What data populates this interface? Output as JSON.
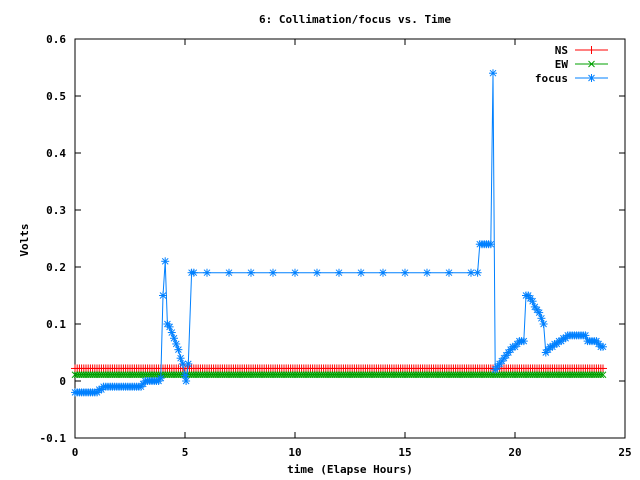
{
  "chart_data": {
    "type": "line",
    "title": "6: Collimation/focus vs. Time",
    "xlabel": "time (Elapse Hours)",
    "ylabel": "Volts",
    "xlim": [
      0,
      25
    ],
    "ylim": [
      -0.1,
      0.6
    ],
    "x_ticks": [
      "0",
      "5",
      "10",
      "15",
      "20",
      "25"
    ],
    "y_ticks": [
      "-0.1",
      "0",
      "0.1",
      "0.2",
      "0.3",
      "0.4",
      "0.5",
      "0.6"
    ],
    "legend_position": "top-right",
    "series": [
      {
        "name": "NS",
        "color": "#ff0000",
        "marker": "plus",
        "constant": {
          "from": 0,
          "to": 24,
          "step": 0.1,
          "value": 0.022
        }
      },
      {
        "name": "EW",
        "color": "#00a000",
        "marker": "cross",
        "constant": {
          "from": 0,
          "to": 24,
          "step": 0.1,
          "value": 0.011
        }
      },
      {
        "name": "focus",
        "color": "#0080ff",
        "marker": "star",
        "points": [
          [
            0.0,
            -0.02
          ],
          [
            0.1,
            -0.02
          ],
          [
            0.2,
            -0.02
          ],
          [
            0.3,
            -0.02
          ],
          [
            0.4,
            -0.02
          ],
          [
            0.5,
            -0.02
          ],
          [
            0.6,
            -0.02
          ],
          [
            0.7,
            -0.02
          ],
          [
            0.8,
            -0.02
          ],
          [
            0.9,
            -0.02
          ],
          [
            1.0,
            -0.02
          ],
          [
            1.1,
            -0.015
          ],
          [
            1.2,
            -0.015
          ],
          [
            1.3,
            -0.01
          ],
          [
            1.4,
            -0.01
          ],
          [
            1.5,
            -0.01
          ],
          [
            1.6,
            -0.01
          ],
          [
            1.7,
            -0.01
          ],
          [
            1.8,
            -0.01
          ],
          [
            1.9,
            -0.01
          ],
          [
            2.0,
            -0.01
          ],
          [
            2.1,
            -0.01
          ],
          [
            2.2,
            -0.01
          ],
          [
            2.3,
            -0.01
          ],
          [
            2.4,
            -0.01
          ],
          [
            2.5,
            -0.01
          ],
          [
            2.6,
            -0.01
          ],
          [
            2.7,
            -0.01
          ],
          [
            2.8,
            -0.01
          ],
          [
            2.9,
            -0.01
          ],
          [
            3.0,
            -0.01
          ],
          [
            3.1,
            -0.005
          ],
          [
            3.2,
            0.0
          ],
          [
            3.3,
            0.0
          ],
          [
            3.4,
            0.0
          ],
          [
            3.5,
            0.0
          ],
          [
            3.6,
            0.0
          ],
          [
            3.7,
            0.0
          ],
          [
            3.8,
            0.0
          ],
          [
            3.9,
            0.005
          ],
          [
            4.0,
            0.15
          ],
          [
            4.1,
            0.21
          ],
          [
            4.2,
            0.1
          ],
          [
            4.3,
            0.095
          ],
          [
            4.4,
            0.085
          ],
          [
            4.5,
            0.075
          ],
          [
            4.6,
            0.065
          ],
          [
            4.7,
            0.055
          ],
          [
            4.8,
            0.04
          ],
          [
            4.9,
            0.03
          ],
          [
            5.0,
            0.01
          ],
          [
            5.05,
            0.0
          ],
          [
            5.15,
            0.03
          ],
          [
            5.3,
            0.19
          ],
          [
            5.4,
            0.19
          ],
          [
            6.0,
            0.19
          ],
          [
            7.0,
            0.19
          ],
          [
            8.0,
            0.19
          ],
          [
            9.0,
            0.19
          ],
          [
            10.0,
            0.19
          ],
          [
            11.0,
            0.19
          ],
          [
            12.0,
            0.19
          ],
          [
            13.0,
            0.19
          ],
          [
            14.0,
            0.19
          ],
          [
            15.0,
            0.19
          ],
          [
            16.0,
            0.19
          ],
          [
            17.0,
            0.19
          ],
          [
            18.0,
            0.19
          ],
          [
            18.3,
            0.19
          ],
          [
            18.4,
            0.24
          ],
          [
            18.5,
            0.24
          ],
          [
            18.6,
            0.24
          ],
          [
            18.7,
            0.24
          ],
          [
            18.8,
            0.24
          ],
          [
            18.9,
            0.24
          ],
          [
            19.0,
            0.54
          ],
          [
            19.1,
            0.02
          ],
          [
            19.2,
            0.025
          ],
          [
            19.3,
            0.03
          ],
          [
            19.4,
            0.035
          ],
          [
            19.5,
            0.04
          ],
          [
            19.6,
            0.045
          ],
          [
            19.7,
            0.05
          ],
          [
            19.8,
            0.055
          ],
          [
            19.9,
            0.06
          ],
          [
            20.0,
            0.06
          ],
          [
            20.1,
            0.065
          ],
          [
            20.2,
            0.07
          ],
          [
            20.3,
            0.07
          ],
          [
            20.4,
            0.07
          ],
          [
            20.5,
            0.15
          ],
          [
            20.6,
            0.15
          ],
          [
            20.7,
            0.145
          ],
          [
            20.8,
            0.14
          ],
          [
            20.9,
            0.13
          ],
          [
            21.0,
            0.125
          ],
          [
            21.1,
            0.12
          ],
          [
            21.2,
            0.11
          ],
          [
            21.3,
            0.1
          ],
          [
            21.4,
            0.05
          ],
          [
            21.5,
            0.055
          ],
          [
            21.6,
            0.06
          ],
          [
            21.7,
            0.06
          ],
          [
            21.8,
            0.065
          ],
          [
            21.9,
            0.065
          ],
          [
            22.0,
            0.07
          ],
          [
            22.1,
            0.07
          ],
          [
            22.2,
            0.075
          ],
          [
            22.3,
            0.075
          ],
          [
            22.4,
            0.08
          ],
          [
            22.5,
            0.08
          ],
          [
            22.6,
            0.08
          ],
          [
            22.7,
            0.08
          ],
          [
            22.8,
            0.08
          ],
          [
            22.9,
            0.08
          ],
          [
            23.0,
            0.08
          ],
          [
            23.1,
            0.08
          ],
          [
            23.2,
            0.08
          ],
          [
            23.3,
            0.07
          ],
          [
            23.4,
            0.07
          ],
          [
            23.5,
            0.07
          ],
          [
            23.6,
            0.07
          ],
          [
            23.7,
            0.07
          ],
          [
            23.8,
            0.065
          ],
          [
            23.9,
            0.06
          ],
          [
            24.0,
            0.06
          ]
        ]
      }
    ]
  }
}
